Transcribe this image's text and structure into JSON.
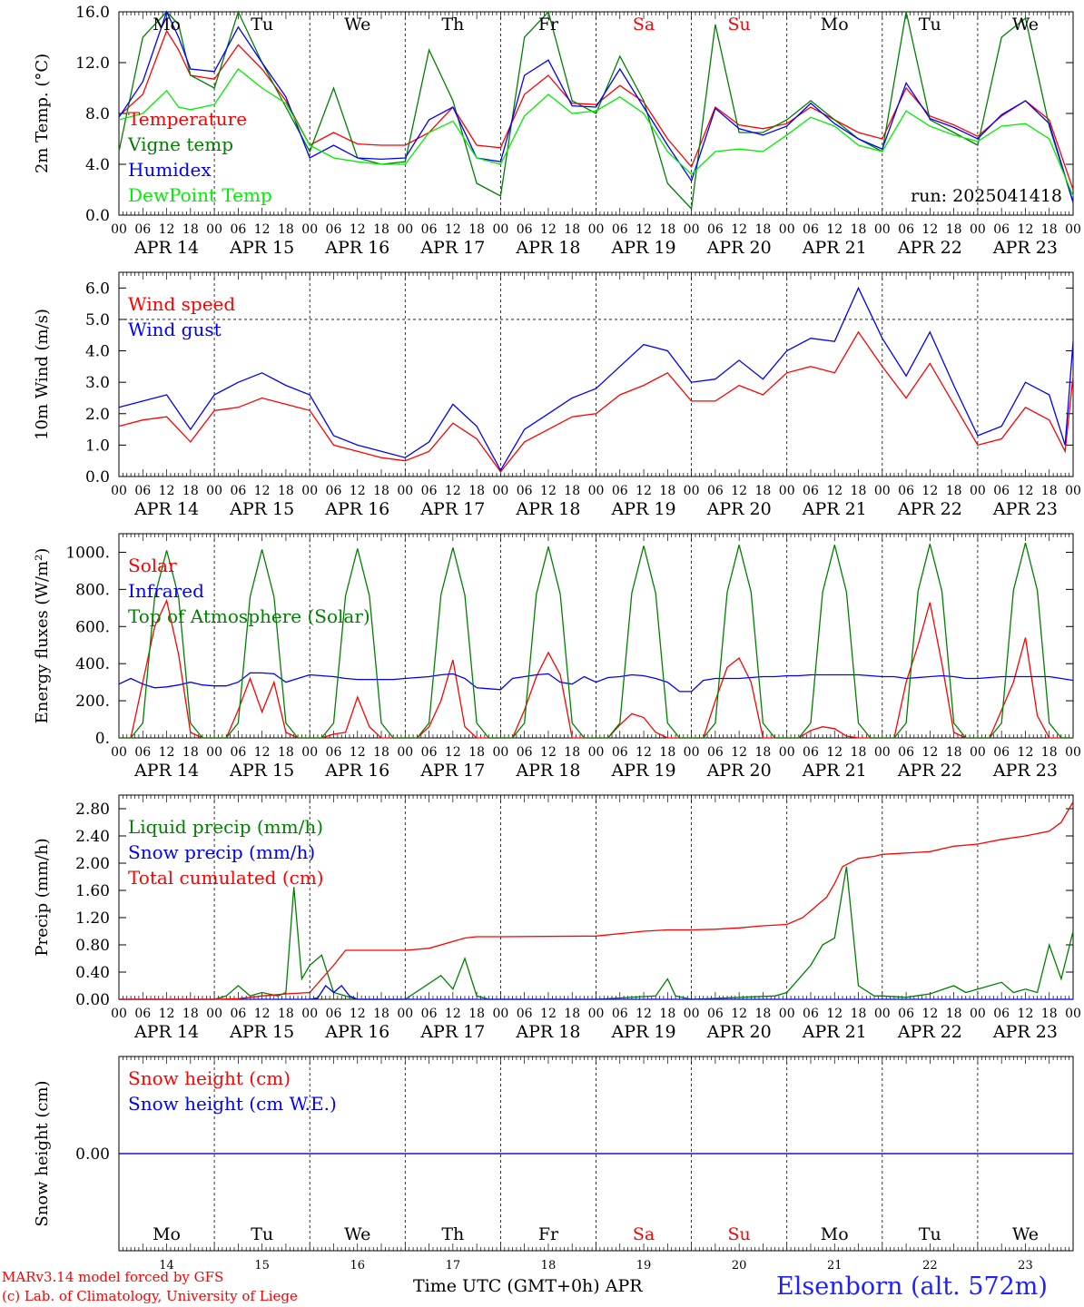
{
  "meta": {
    "days": [
      "APR 14",
      "APR 15",
      "APR 16",
      "APR 17",
      "APR 18",
      "APR 19",
      "APR 20",
      "APR 21",
      "APR 22",
      "APR 23"
    ],
    "weekdays": [
      "Mo",
      "Tu",
      "We",
      "Th",
      "Fr",
      "Sa",
      "Su",
      "Mo",
      "Tu",
      "We"
    ],
    "weekday_colors": [
      "#000000",
      "#000000",
      "#000000",
      "#000000",
      "#000000",
      "#ff0000",
      "#ff0000",
      "#000000",
      "#000000",
      "#000000"
    ],
    "day_numbers": [
      "14",
      "15",
      "16",
      "17",
      "18",
      "19",
      "20",
      "21",
      "22",
      "23"
    ],
    "hour_ticks": [
      "00",
      "06",
      "12",
      "18"
    ],
    "final_hour": "00",
    "xcaption": "Time UTC (GMT+0h) APR",
    "credit_line1": "MARv3.14 model forced by GFS",
    "credit_line2": "(c) Lab. of Climatology, University of Liege",
    "station": "Elsenborn (alt. 572m)"
  },
  "chart_data": [
    {
      "type": "line",
      "ylabel": "2m Temp. (°C)",
      "ylim": [
        0,
        16
      ],
      "yticks": [
        "0.0",
        "4.0",
        "8.0",
        "12.0",
        "16.0"
      ],
      "ytick_values": [
        0,
        4,
        8,
        12,
        16
      ],
      "annotation": "run: 2025041418",
      "x_hours_since_apr14": [
        0,
        6,
        12,
        15,
        18,
        24,
        30,
        36,
        42,
        48,
        54,
        60,
        66,
        72,
        78,
        84,
        90,
        96,
        102,
        108,
        114,
        120,
        126,
        132,
        138,
        144,
        150,
        156,
        162,
        168,
        174,
        180,
        186,
        192,
        198,
        204,
        210,
        216,
        222,
        228,
        234,
        240
      ],
      "series": [
        {
          "name": "Temperature",
          "color": "#ff0000",
          "values": [
            7.8,
            9.5,
            14.5,
            13.0,
            11.0,
            10.7,
            13.4,
            11.5,
            9.0,
            5.5,
            6.5,
            5.6,
            5.5,
            5.5,
            6.5,
            8.5,
            5.5,
            5.3,
            9.5,
            11.0,
            8.8,
            8.7,
            10.2,
            8.9,
            6.0,
            3.8,
            8.5,
            7.1,
            6.8,
            7.2,
            8.5,
            7.5,
            6.5,
            6.0,
            10.0,
            7.8,
            7.1,
            6.2,
            7.8,
            9.0,
            7.5,
            2.0
          ]
        },
        {
          "name": "Vigne temp",
          "color": "#008000",
          "values": [
            5.0,
            14.0,
            16.0,
            15.0,
            11.0,
            10.0,
            16.0,
            12.0,
            8.5,
            5.0,
            10.0,
            4.5,
            4.0,
            4.2,
            13.0,
            9.0,
            2.5,
            1.5,
            14.0,
            16.0,
            9.0,
            8.0,
            12.5,
            9.0,
            2.5,
            0.5,
            15.0,
            6.5,
            6.5,
            7.5,
            9.0,
            7.5,
            6.0,
            5.0,
            16.0,
            7.5,
            6.5,
            5.5,
            14.0,
            15.5,
            7.0,
            1.0
          ]
        },
        {
          "name": "Humidex",
          "color": "#0000ff",
          "values": [
            7.7,
            10.5,
            16.0,
            14.0,
            11.5,
            11.3,
            14.8,
            12.0,
            9.3,
            4.5,
            5.5,
            4.5,
            4.4,
            4.5,
            7.5,
            8.5,
            4.5,
            4.2,
            11.0,
            12.2,
            8.6,
            8.5,
            11.5,
            8.5,
            5.5,
            2.7,
            8.4,
            6.8,
            6.3,
            7.0,
            8.8,
            7.2,
            6.0,
            5.2,
            10.4,
            7.6,
            6.9,
            6.0,
            7.9,
            9.0,
            7.2,
            1.0
          ]
        },
        {
          "name": "DewPoint Temp",
          "color": "#00ee00",
          "values": [
            7.5,
            8.0,
            9.8,
            8.5,
            8.3,
            8.7,
            11.5,
            10.0,
            8.8,
            5.5,
            4.5,
            4.2,
            4.0,
            4.0,
            6.5,
            7.4,
            4.5,
            4.0,
            7.8,
            9.5,
            8.0,
            8.2,
            9.3,
            8.0,
            5.0,
            3.2,
            5.0,
            5.2,
            5.0,
            6.3,
            7.7,
            7.0,
            5.5,
            5.0,
            8.2,
            7.0,
            6.3,
            5.8,
            7.0,
            7.2,
            6.0,
            1.5
          ]
        }
      ]
    },
    {
      "type": "line",
      "ylabel": "10m Wind (m/s)",
      "ylim": [
        0,
        6.5
      ],
      "yticks": [
        "0.0",
        "1.0",
        "2.0",
        "3.0",
        "4.0",
        "5.0",
        "6.0"
      ],
      "ytick_values": [
        0,
        1,
        2,
        3,
        4,
        5,
        6
      ],
      "reference_line": 5.0,
      "x_hours_since_apr14": [
        0,
        6,
        12,
        18,
        24,
        30,
        36,
        42,
        48,
        54,
        60,
        66,
        72,
        78,
        84,
        90,
        96,
        102,
        108,
        114,
        120,
        126,
        132,
        138,
        144,
        150,
        156,
        162,
        168,
        174,
        180,
        186,
        192,
        198,
        204,
        210,
        216,
        222,
        228,
        234,
        238,
        240
      ],
      "series": [
        {
          "name": "Wind speed",
          "color": "#ff0000",
          "values": [
            1.6,
            1.8,
            1.9,
            1.1,
            2.1,
            2.2,
            2.5,
            2.3,
            2.1,
            1.0,
            0.8,
            0.6,
            0.5,
            0.8,
            1.7,
            1.2,
            0.15,
            1.1,
            1.5,
            1.9,
            2.0,
            2.6,
            2.9,
            3.3,
            2.4,
            2.4,
            2.9,
            2.6,
            3.3,
            3.5,
            3.3,
            4.6,
            3.5,
            2.5,
            3.6,
            2.3,
            1.0,
            1.2,
            2.2,
            1.8,
            0.8,
            3.2
          ]
        },
        {
          "name": "Wind gust",
          "color": "#0000ff",
          "values": [
            2.2,
            2.4,
            2.6,
            1.5,
            2.6,
            3.0,
            3.3,
            2.9,
            2.6,
            1.3,
            1.0,
            0.8,
            0.6,
            1.1,
            2.3,
            1.6,
            0.2,
            1.5,
            2.0,
            2.5,
            2.8,
            3.5,
            4.2,
            4.0,
            3.0,
            3.1,
            3.7,
            3.1,
            4.0,
            4.4,
            4.3,
            6.0,
            4.4,
            3.2,
            4.6,
            2.9,
            1.3,
            1.6,
            3.0,
            2.6,
            1.0,
            4.3
          ]
        }
      ]
    },
    {
      "type": "line",
      "ylabel": "Energy fluxes (W/m²)",
      "ylim": [
        0,
        1100
      ],
      "yticks": [
        "0.",
        "200.",
        "400.",
        "600.",
        "800.",
        "1000."
      ],
      "ytick_values": [
        0,
        200,
        400,
        600,
        800,
        1000
      ],
      "x_hours_since_apr14": [
        0,
        3,
        6,
        9,
        12,
        15,
        18,
        21,
        24,
        27,
        30,
        33,
        36,
        39,
        42,
        45,
        48,
        51,
        54,
        57,
        60,
        63,
        66,
        69,
        72,
        75,
        78,
        81,
        84,
        87,
        90,
        93,
        96,
        99,
        102,
        105,
        108,
        111,
        114,
        117,
        120,
        123,
        126,
        129,
        132,
        135,
        138,
        141,
        144,
        147,
        150,
        153,
        156,
        159,
        162,
        165,
        168,
        171,
        174,
        177,
        180,
        183,
        186,
        189,
        192,
        195,
        198,
        201,
        204,
        207,
        210,
        213,
        216,
        219,
        222,
        225,
        228,
        231,
        234,
        237,
        240
      ],
      "series": [
        {
          "name": "Solar",
          "color": "#ff0000",
          "values": [
            0,
            0,
            300,
            600,
            740,
            450,
            30,
            0,
            0,
            0,
            150,
            320,
            140,
            300,
            30,
            0,
            0,
            0,
            20,
            30,
            220,
            60,
            0,
            0,
            0,
            0,
            60,
            200,
            420,
            60,
            0,
            0,
            0,
            0,
            150,
            330,
            460,
            340,
            0,
            0,
            0,
            0,
            70,
            130,
            110,
            30,
            0,
            0,
            0,
            0,
            200,
            380,
            430,
            300,
            0,
            0,
            0,
            0,
            40,
            60,
            50,
            10,
            0,
            0,
            0,
            0,
            300,
            500,
            730,
            400,
            30,
            0,
            0,
            0,
            150,
            300,
            540,
            120,
            0,
            0,
            0
          ]
        },
        {
          "name": "Infrared",
          "color": "#0000ff",
          "values": [
            290,
            320,
            290,
            270,
            275,
            285,
            300,
            285,
            280,
            280,
            300,
            350,
            350,
            345,
            300,
            320,
            340,
            335,
            330,
            320,
            315,
            315,
            315,
            315,
            320,
            325,
            330,
            340,
            345,
            320,
            270,
            265,
            260,
            320,
            330,
            340,
            345,
            300,
            290,
            330,
            300,
            325,
            330,
            340,
            335,
            320,
            300,
            250,
            250,
            310,
            320,
            320,
            320,
            325,
            330,
            330,
            335,
            335,
            340,
            340,
            340,
            340,
            340,
            335,
            330,
            330,
            320,
            325,
            330,
            335,
            330,
            320,
            320,
            325,
            330,
            330,
            330,
            330,
            330,
            320,
            310
          ]
        },
        {
          "name": "Top of Atmosphere (Solar)",
          "color": "#008000",
          "values": [
            0,
            0,
            80,
            760,
            1010,
            760,
            80,
            0,
            0,
            0,
            80,
            760,
            1015,
            760,
            80,
            0,
            0,
            0,
            80,
            765,
            1020,
            765,
            80,
            0,
            0,
            0,
            80,
            770,
            1025,
            770,
            80,
            0,
            0,
            0,
            80,
            775,
            1030,
            775,
            80,
            0,
            0,
            0,
            80,
            780,
            1035,
            780,
            80,
            0,
            0,
            0,
            80,
            785,
            1040,
            785,
            80,
            0,
            0,
            0,
            80,
            785,
            1040,
            785,
            80,
            0,
            0,
            0,
            80,
            790,
            1045,
            790,
            80,
            0,
            0,
            0,
            80,
            795,
            1050,
            795,
            80,
            0,
            0
          ]
        }
      ]
    },
    {
      "type": "line",
      "ylabel": "Precip (mm/h)",
      "ylim": [
        0,
        3.0
      ],
      "yticks": [
        "0.00",
        "0.40",
        "0.80",
        "1.20",
        "1.60",
        "2.00",
        "2.40",
        "2.80"
      ],
      "ytick_values": [
        0,
        0.4,
        0.8,
        1.2,
        1.6,
        2.0,
        2.4,
        2.8
      ],
      "series": [
        {
          "name": "Liquid precip (mm/h)",
          "color": "#008000",
          "x": [
            0,
            24,
            27,
            30,
            33,
            36,
            40,
            42,
            44,
            46,
            48,
            51,
            54,
            57,
            60,
            66,
            72,
            81,
            84,
            87,
            90,
            93,
            96,
            120,
            135,
            138,
            140,
            144,
            165,
            168,
            174,
            177,
            180,
            183,
            186,
            190,
            192,
            198,
            204,
            210,
            213,
            222,
            225,
            228,
            231,
            234,
            237,
            240
          ],
          "values": [
            0,
            0,
            0.05,
            0.2,
            0.05,
            0.1,
            0.05,
            0.1,
            1.65,
            0.3,
            0.5,
            0.65,
            0.1,
            0.05,
            0,
            0,
            0,
            0.35,
            0.15,
            0.6,
            0.05,
            0,
            0,
            0,
            0.05,
            0.3,
            0.05,
            0,
            0.05,
            0.1,
            0.5,
            0.8,
            0.9,
            1.95,
            0.2,
            0.05,
            0.05,
            0.03,
            0.08,
            0.2,
            0.1,
            0.25,
            0.1,
            0.15,
            0.1,
            0.8,
            0.3,
            1.0
          ]
        },
        {
          "name": "Snow precip (mm/h)",
          "color": "#0000ff",
          "x": [
            0,
            48,
            50,
            52,
            54,
            56,
            58,
            60,
            240
          ],
          "values": [
            0,
            0,
            0.02,
            0.2,
            0.1,
            0.2,
            0.05,
            0,
            0
          ]
        },
        {
          "name": "Total cumulated (cm)",
          "color": "#ff0000",
          "x": [
            0,
            24,
            30,
            36,
            42,
            48,
            51,
            54,
            57,
            60,
            66,
            72,
            78,
            84,
            87,
            90,
            96,
            120,
            132,
            138,
            144,
            150,
            156,
            162,
            168,
            172,
            174,
            178,
            180,
            182,
            186,
            190,
            192,
            204,
            210,
            216,
            222,
            228,
            234,
            237,
            240
          ],
          "values": [
            0,
            0,
            0.01,
            0.05,
            0.08,
            0.1,
            0.3,
            0.5,
            0.72,
            0.72,
            0.72,
            0.72,
            0.75,
            0.85,
            0.9,
            0.92,
            0.92,
            0.93,
            1.0,
            1.02,
            1.02,
            1.03,
            1.05,
            1.08,
            1.1,
            1.2,
            1.3,
            1.5,
            1.7,
            1.95,
            2.07,
            2.1,
            2.13,
            2.17,
            2.25,
            2.28,
            2.35,
            2.4,
            2.47,
            2.6,
            2.9
          ]
        }
      ]
    },
    {
      "type": "line",
      "ylabel": "Snow height (cm)",
      "ylim": [
        -1,
        1
      ],
      "yticks": [
        "0.00"
      ],
      "ytick_values": [
        0
      ],
      "x_hours_since_apr14": [
        0,
        240
      ],
      "series": [
        {
          "name": "Snow height (cm)",
          "color": "#ff0000",
          "values": [
            0,
            0
          ]
        },
        {
          "name": "Snow height (cm W.E.)",
          "color": "#0000ff",
          "values": [
            0,
            0
          ]
        }
      ]
    }
  ]
}
